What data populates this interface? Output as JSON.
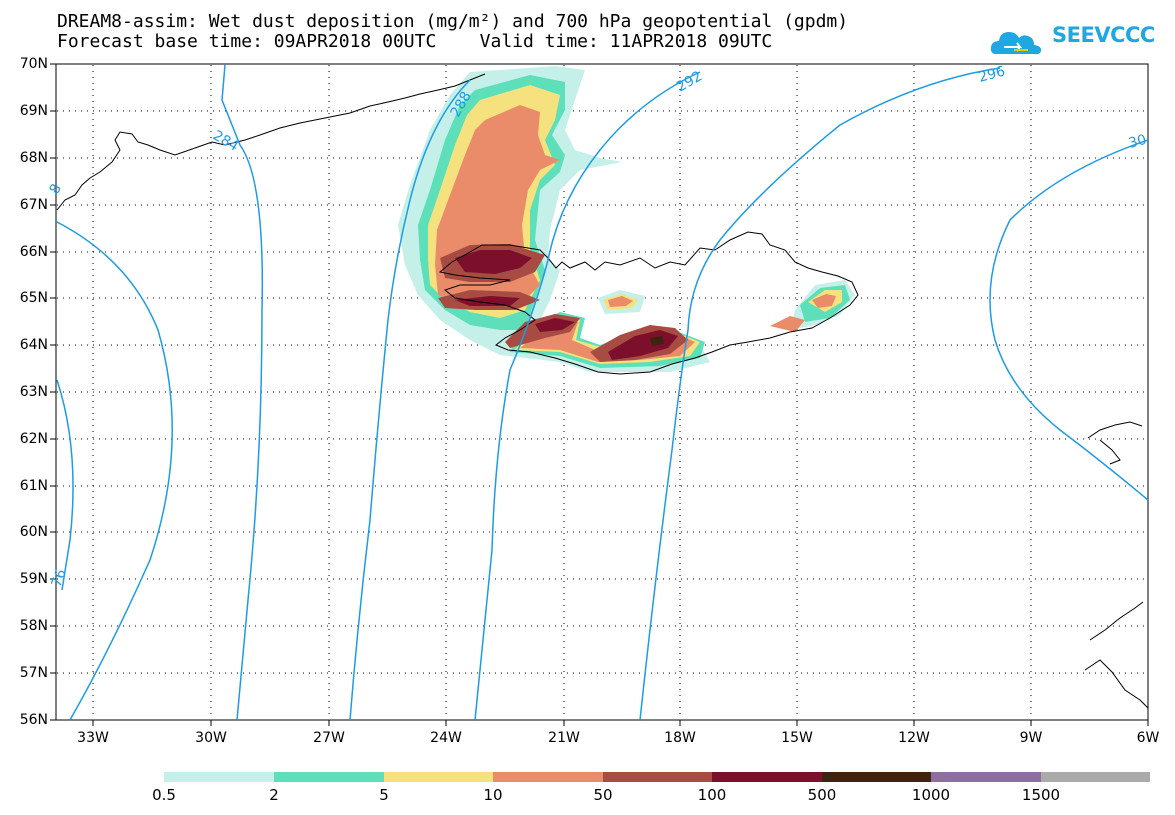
{
  "header": {
    "line1": "DREAM8-assim: Wet dust deposition (mg/m²) and 700 hPa geopotential (gpdm)",
    "line2": "Forecast base time: 09APR2018 00UTC    Valid time: 11APR2018 09UTC"
  },
  "logo": {
    "text": "SEEVCCC",
    "color": "#1ea7e1",
    "icon": "cloud-arrow-icon"
  },
  "axes": {
    "lat_labels": [
      "70N",
      "69N",
      "68N",
      "67N",
      "66N",
      "65N",
      "64N",
      "63N",
      "62N",
      "61N",
      "60N",
      "59N",
      "58N",
      "57N",
      "56N"
    ],
    "lon_labels": [
      "33W",
      "30W",
      "27W",
      "24W",
      "21W",
      "18W",
      "15W",
      "12W",
      "9W",
      "6W"
    ]
  },
  "contours": {
    "color": "#1e9be6",
    "labels": [
      "284",
      "288",
      "292",
      "296",
      "30",
      "8",
      "76"
    ]
  },
  "colorbar": {
    "colors": [
      "#c4f0e9",
      "#5de0b9",
      "#f5e27e",
      "#ea8c6a",
      "#a84c43",
      "#7b0f2c",
      "#3e2410",
      "#8e6e9e",
      "#aaaaaa"
    ],
    "labels": [
      "0.5",
      "2",
      "5",
      "10",
      "50",
      "100",
      "500",
      "1000",
      "1500"
    ]
  }
}
